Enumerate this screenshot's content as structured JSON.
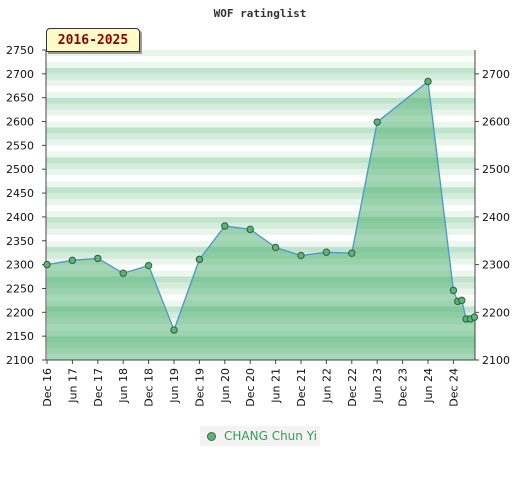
{
  "chart_data": {
    "type": "area",
    "title": "WOF ratinglist",
    "period_label": "2016-2025",
    "ylim": [
      2100,
      2750
    ],
    "y_ticks_left": [
      2100,
      2150,
      2200,
      2250,
      2300,
      2350,
      2400,
      2450,
      2500,
      2550,
      2600,
      2650,
      2700,
      2750
    ],
    "y_ticks_right": [
      2100,
      2200,
      2300,
      2400,
      2500,
      2600,
      2700
    ],
    "x_ticks": [
      "Dec 16",
      "Jun 17",
      "Dec 17",
      "Jun 18",
      "Dec 18",
      "Jun 19",
      "Dec 19",
      "Jun 20",
      "Dec 20",
      "Jun 21",
      "Dec 21",
      "Jun 22",
      "Dec 22",
      "Jun 23",
      "Dec 23",
      "Jun 24",
      "Dec 24"
    ],
    "series": [
      {
        "name": "CHANG Chun Yi",
        "color": "#5fb37a",
        "points": [
          {
            "x": 0,
            "y": 2300
          },
          {
            "x": 1,
            "y": 2309
          },
          {
            "x": 2,
            "y": 2313
          },
          {
            "x": 3,
            "y": 2282
          },
          {
            "x": 4,
            "y": 2298
          },
          {
            "x": 5,
            "y": 2163
          },
          {
            "x": 6,
            "y": 2311
          },
          {
            "x": 7,
            "y": 2381
          },
          {
            "x": 8,
            "y": 2374
          },
          {
            "x": 9,
            "y": 2336
          },
          {
            "x": 10,
            "y": 2319
          },
          {
            "x": 11,
            "y": 2326
          },
          {
            "x": 12,
            "y": 2324
          },
          {
            "x": 13,
            "y": 2599
          },
          {
            "x": 15,
            "y": 2684
          },
          {
            "x": 16,
            "y": 2246
          },
          {
            "x": 16.17,
            "y": 2223
          },
          {
            "x": 16.33,
            "y": 2225
          },
          {
            "x": 16.5,
            "y": 2186
          },
          {
            "x": 16.67,
            "y": 2186
          },
          {
            "x": 16.83,
            "y": 2190
          }
        ]
      }
    ],
    "grid": true,
    "legend_position": "bottom-center"
  }
}
